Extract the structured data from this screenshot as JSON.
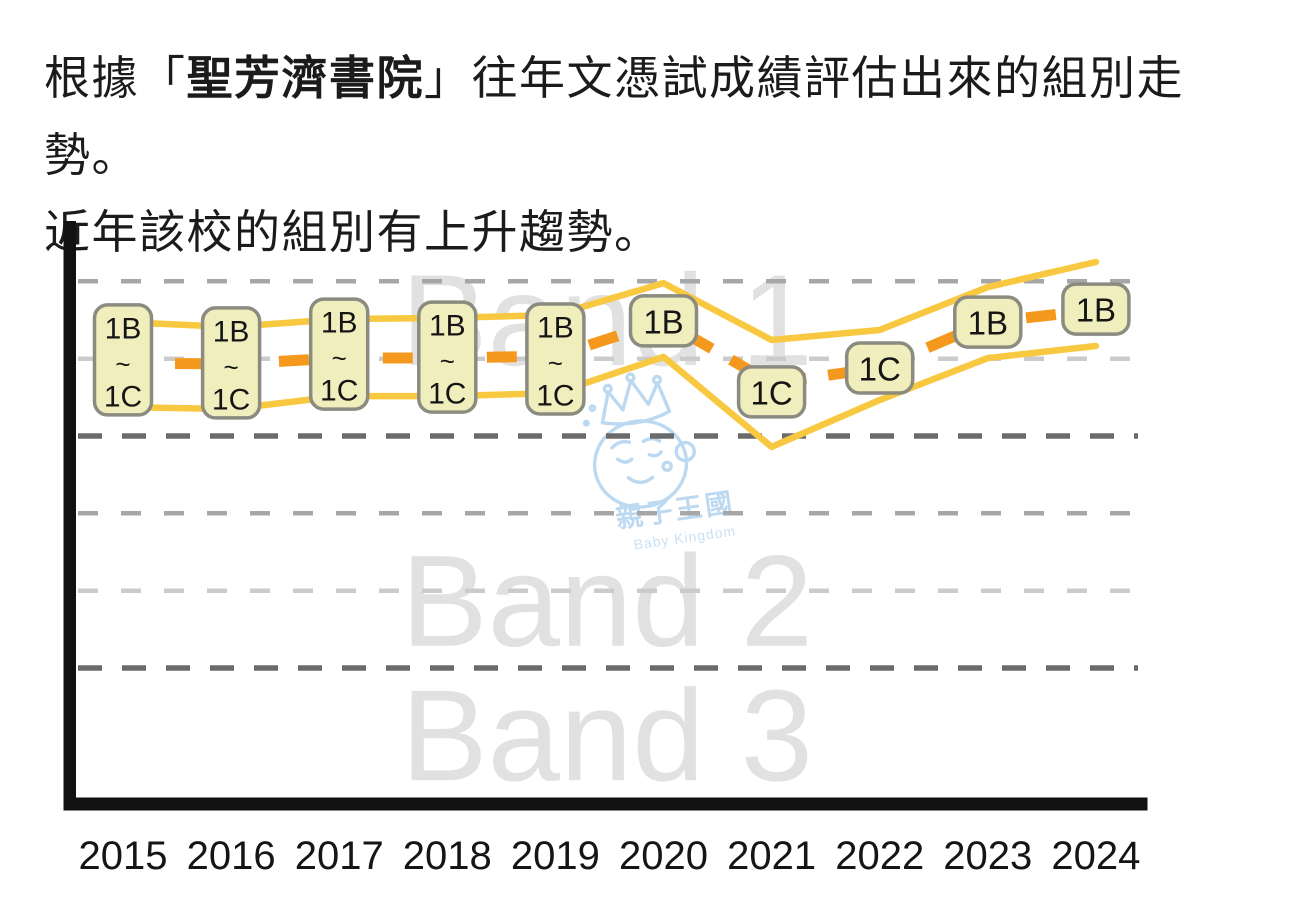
{
  "page": {
    "background": "#FFFFFF"
  },
  "title": {
    "prefix": "根據「",
    "school": "聖芳濟書院",
    "suffix": "」往年文憑試成績評估出來的組別走勢。",
    "line2": "近年該校的組別有上升趨勢。"
  },
  "watermark": {
    "logo_text_cn": "親子王國",
    "logo_text_en": "Baby Kingdom",
    "color": "#B9D8F1"
  },
  "chart_data": {
    "type": "line",
    "x": [
      2015,
      2016,
      2017,
      2018,
      2019,
      2020,
      2021,
      2022,
      2023,
      2024
    ],
    "y_axis": {
      "unit": "band",
      "top": 1.0,
      "bottom": 3.56,
      "note": "v=1.0 is top of Band 1, v=2.0 is Band1/Band2 boundary, v=3.0 is Band2/Band3 boundary"
    },
    "band_watermarks": [
      {
        "label": "Band 1",
        "v_center": 1.5
      },
      {
        "label": "Band 2",
        "v_center": 2.71
      },
      {
        "label": "Band 3",
        "v_center": 3.29
      }
    ],
    "gridlines": [
      {
        "v": 1.333,
        "style": "light"
      },
      {
        "v": 1.667,
        "style": "lighter"
      },
      {
        "v": 2.0,
        "style": "dark"
      },
      {
        "v": 2.333,
        "style": "light"
      },
      {
        "v": 2.667,
        "style": "lighter"
      },
      {
        "v": 3.0,
        "style": "dark"
      }
    ],
    "series": [
      {
        "name": "upper-bound",
        "style": "solid",
        "color": "#F9C841",
        "values": [
          1.509,
          1.53,
          1.496,
          1.491,
          1.478,
          1.341,
          1.586,
          1.543,
          1.358,
          1.25
        ]
      },
      {
        "name": "trend",
        "style": "dashed",
        "color": "#F5991E",
        "values": [
          1.685,
          1.69,
          1.664,
          1.664,
          1.655,
          1.504,
          1.772,
          1.707,
          1.509,
          1.457
        ]
      },
      {
        "name": "lower-bound",
        "style": "solid",
        "color": "#F9C841",
        "values": [
          1.875,
          1.884,
          1.828,
          1.828,
          1.815,
          1.659,
          2.047,
          1.845,
          1.664,
          1.612
        ]
      }
    ],
    "point_labels": [
      {
        "year": 2015,
        "lines": [
          "1B",
          "~",
          "1C"
        ],
        "v": 1.672
      },
      {
        "year": 2016,
        "lines": [
          "1B",
          "~",
          "1C"
        ],
        "v": 1.685
      },
      {
        "year": 2017,
        "lines": [
          "1B",
          "~",
          "1C"
        ],
        "v": 1.647
      },
      {
        "year": 2018,
        "lines": [
          "1B",
          "~",
          "1C"
        ],
        "v": 1.66
      },
      {
        "year": 2019,
        "lines": [
          "1B",
          "~",
          "1C"
        ],
        "v": 1.668
      },
      {
        "year": 2020,
        "lines": [
          "1B"
        ],
        "v": 1.504
      },
      {
        "year": 2021,
        "lines": [
          "1C"
        ],
        "v": 1.81
      },
      {
        "year": 2022,
        "lines": [
          "1C"
        ],
        "v": 1.707
      },
      {
        "year": 2023,
        "lines": [
          "1B"
        ],
        "v": 1.509
      },
      {
        "year": 2024,
        "lines": [
          "1B"
        ],
        "v": 1.453
      }
    ],
    "colors": {
      "box_fill": "#F1EEBE",
      "box_border": "#8B8B80",
      "axis": "#111111",
      "grid_dark": "#6B6B6B",
      "grid_light": "#A7A7A7",
      "grid_lighter": "#CBCBCB",
      "watermark_gray": "#E1E1E1",
      "tick_label": "#151515"
    }
  }
}
